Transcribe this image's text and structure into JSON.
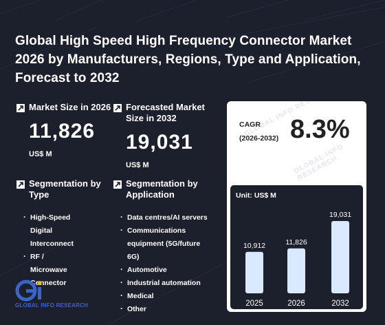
{
  "title": "Global High Speed High Frequency Connector Market 2026 by Manufacturers, Regions, Type and Application, Forecast to 2032",
  "kpis": {
    "market_size": {
      "label": "Market Size in 2026",
      "value": "11,826",
      "unit": "US$ M",
      "icon": "arrow-up-right-icon"
    },
    "forecast": {
      "label": "Forecasted Market Size in 2032",
      "value": "19,031",
      "unit": "US$ M",
      "icon": "arrow-up-right-icon"
    }
  },
  "segmentation": {
    "type": {
      "label": "Segmentation by Type",
      "items": [
        "High-Speed Digital Interconnect",
        "RF / Microwave Connector"
      ]
    },
    "application": {
      "label": "Segmentation by Application",
      "items": [
        "Data centres/AI servers",
        "Communications equipment (5G/future 6G)",
        "Automotive",
        "Industrial automation",
        "Medical",
        "Other"
      ]
    }
  },
  "cagr": {
    "label": "CAGR",
    "period": "(2026-2032)",
    "value": "8.3%"
  },
  "watermark": "GLOBAL INFO RESEARCH",
  "logo": {
    "text": "GLOBAL INFO RESEARCH",
    "mark": "Gi"
  },
  "colors": {
    "background": "#1c1f2c",
    "bar": "#d9e9ff",
    "card": "#ffffff",
    "logo_blue": "#3a64c8",
    "logo_yellow": "#e2c400"
  },
  "chart_data": {
    "type": "bar",
    "unit_label": "Unit: US$ M",
    "categories": [
      "2025",
      "2026",
      "2032"
    ],
    "values": [
      10912,
      11826,
      19031
    ],
    "value_labels": [
      "10,912",
      "11,826",
      "19,031"
    ]
  }
}
